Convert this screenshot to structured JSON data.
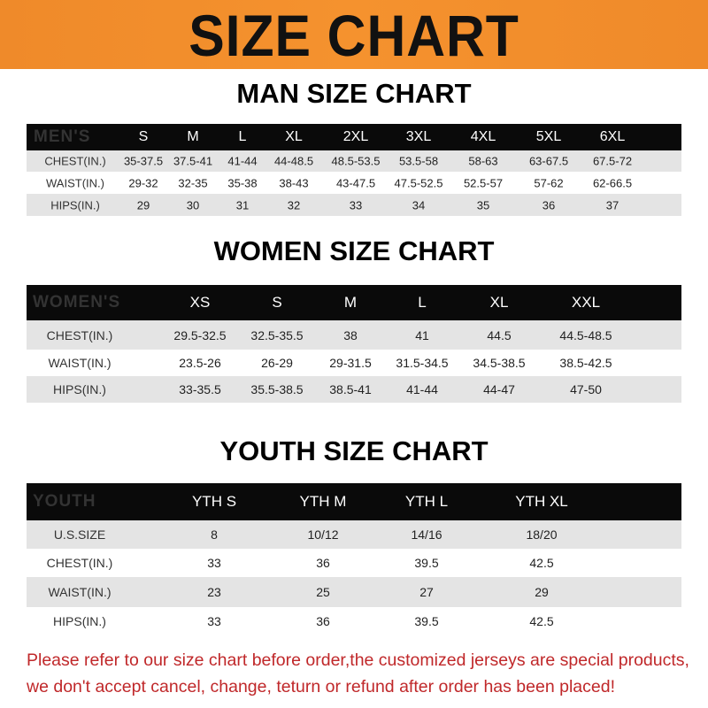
{
  "title": "SIZE CHART",
  "colors": {
    "banner": "#ef8a2a",
    "header_row": "#0a0a0a",
    "stripe": "#e4e4e4",
    "note": "#c0282a"
  },
  "men": {
    "title": "MAN SIZE CHART",
    "header": [
      "MEN'S",
      "S",
      "M",
      "L",
      "XL",
      "2XL",
      "3XL",
      "4XL",
      "5XL",
      "6XL"
    ],
    "rows": [
      [
        "CHEST(IN.)",
        "35-37.5",
        "37.5-41",
        "41-44",
        "44-48.5",
        "48.5-53.5",
        "53.5-58",
        "58-63",
        "63-67.5",
        "67.5-72"
      ],
      [
        "WAIST(IN.)",
        "29-32",
        "32-35",
        "35-38",
        "38-43",
        "43-47.5",
        "47.5-52.5",
        "52.5-57",
        "57-62",
        "62-66.5"
      ],
      [
        "HIPS(IN.)",
        "29",
        "30",
        "31",
        "32",
        "33",
        "34",
        "35",
        "36",
        "37"
      ]
    ]
  },
  "women": {
    "title": "WOMEN SIZE CHART",
    "header": [
      "WOMEN'S",
      "XS",
      "S",
      "M",
      "L",
      "XL",
      "XXL"
    ],
    "rows": [
      [
        "CHEST(IN.)",
        "29.5-32.5",
        "32.5-35.5",
        "38",
        "41",
        "44.5",
        "44.5-48.5"
      ],
      [
        "WAIST(IN.)",
        "23.5-26",
        "26-29",
        "29-31.5",
        "31.5-34.5",
        "34.5-38.5",
        "38.5-42.5"
      ],
      [
        "HIPS(IN.)",
        "33-35.5",
        "35.5-38.5",
        "38.5-41",
        "41-44",
        "44-47",
        "47-50"
      ]
    ]
  },
  "youth": {
    "title": "YOUTH SIZE CHART",
    "header": [
      "YOUTH",
      "YTH S",
      "YTH M",
      "YTH L",
      "YTH XL"
    ],
    "rows": [
      [
        "U.S.SIZE",
        "8",
        "10/12",
        "14/16",
        "18/20"
      ],
      [
        "CHEST(IN.)",
        "33",
        "36",
        "39.5",
        "42.5"
      ],
      [
        "WAIST(IN.)",
        "23",
        "25",
        "27",
        "29"
      ],
      [
        "HIPS(IN.)",
        "33",
        "36",
        "39.5",
        "42.5"
      ]
    ]
  },
  "note": {
    "line1": "Please refer to our size chart before order,the customized jerseys are special products,",
    "line2": "we don't accept cancel, change, teturn or refund after order has been placed!"
  }
}
